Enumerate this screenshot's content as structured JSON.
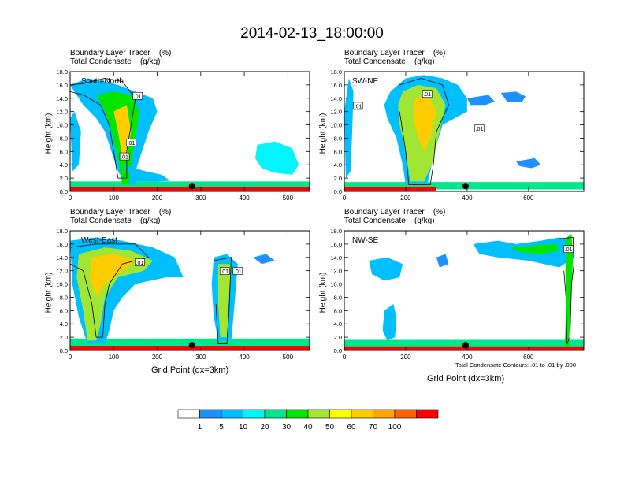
{
  "title": "2014-02-13_18:00:00",
  "panel_title_line1": "Boundary Layer Tracer    (%)",
  "panel_title_line2": "Total Condensate    (g/kg)",
  "x_axis_label": "Grid Point (dx=3km)",
  "contour_note": "Total Condensate Contours: .01 to .01 by .000",
  "colorbar": {
    "labels": [
      "1",
      "5",
      "10",
      "20",
      "30",
      "40",
      "50",
      "60",
      "70",
      "100"
    ],
    "colors": [
      "#ffffff",
      "#1e90ff",
      "#00bfff",
      "#00f5ff",
      "#00e68c",
      "#00e600",
      "#a0e632",
      "#ffff00",
      "#ffcc00",
      "#ffa500",
      "#ff6400",
      "#ff0000"
    ]
  },
  "chart_data": [
    {
      "type": "heatmap",
      "label": "South-North",
      "title": "Boundary Layer Tracer (%) / Total Condensate (g/kg)",
      "xlabel": "",
      "ylabel": "Height (km)",
      "xlim": [
        0,
        550
      ],
      "ylim": [
        0,
        18
      ],
      "x_ticks": [
        0,
        100,
        200,
        300,
        400,
        500
      ],
      "y_ticks": [
        "0.0",
        "2.0",
        "4.0",
        "6.0",
        "8.0",
        "10.0",
        "12.0",
        "14.0",
        "16.0",
        "18.0"
      ],
      "marker_x": 280,
      "contour_labels": [
        ".01",
        ".01",
        ".01"
      ]
    },
    {
      "type": "heatmap",
      "label": "SW-NE",
      "title": "Boundary Layer Tracer (%) / Total Condensate (g/kg)",
      "xlabel": "",
      "ylabel": "Height (km)",
      "xlim": [
        0,
        780
      ],
      "ylim": [
        0,
        18
      ],
      "x_ticks": [
        0,
        200,
        400,
        600
      ],
      "y_ticks": [
        "0.0",
        "2.0",
        "4.0",
        "6.0",
        "8.0",
        "10.0",
        "12.0",
        "14.0",
        "16.0",
        "18.0"
      ],
      "marker_x": 395,
      "contour_labels": [
        ".01",
        ".01",
        ".01"
      ]
    },
    {
      "type": "heatmap",
      "label": "West-East",
      "title": "Boundary Layer Tracer (%) / Total Condensate (g/kg)",
      "xlabel": "Grid Point (dx=3km)",
      "ylabel": "Height (km)",
      "xlim": [
        0,
        550
      ],
      "ylim": [
        0,
        18
      ],
      "x_ticks": [
        0,
        100,
        200,
        300,
        400,
        500
      ],
      "y_ticks": [
        "0.0",
        "2.0",
        "4.0",
        "6.0",
        "8.0",
        "10.0",
        "12.0",
        "14.0",
        "16.0",
        "18.0"
      ],
      "marker_x": 280,
      "contour_labels": [
        ".01",
        ".01",
        ".01"
      ]
    },
    {
      "type": "heatmap",
      "label": "NW-SE",
      "title": "Boundary Layer Tracer (%) / Total Condensate (g/kg)",
      "xlabel": "Grid Point (dx=3km)",
      "ylabel": "Height (km)",
      "xlim": [
        0,
        780
      ],
      "ylim": [
        0,
        18
      ],
      "x_ticks": [
        0,
        200,
        400,
        600
      ],
      "y_ticks": [
        "0.0",
        "2.0",
        "4.0",
        "6.0",
        "8.0",
        "10.0",
        "12.0",
        "14.0",
        "16.0",
        "18.0"
      ],
      "marker_x": 395,
      "contour_labels": [
        ".01"
      ]
    }
  ]
}
